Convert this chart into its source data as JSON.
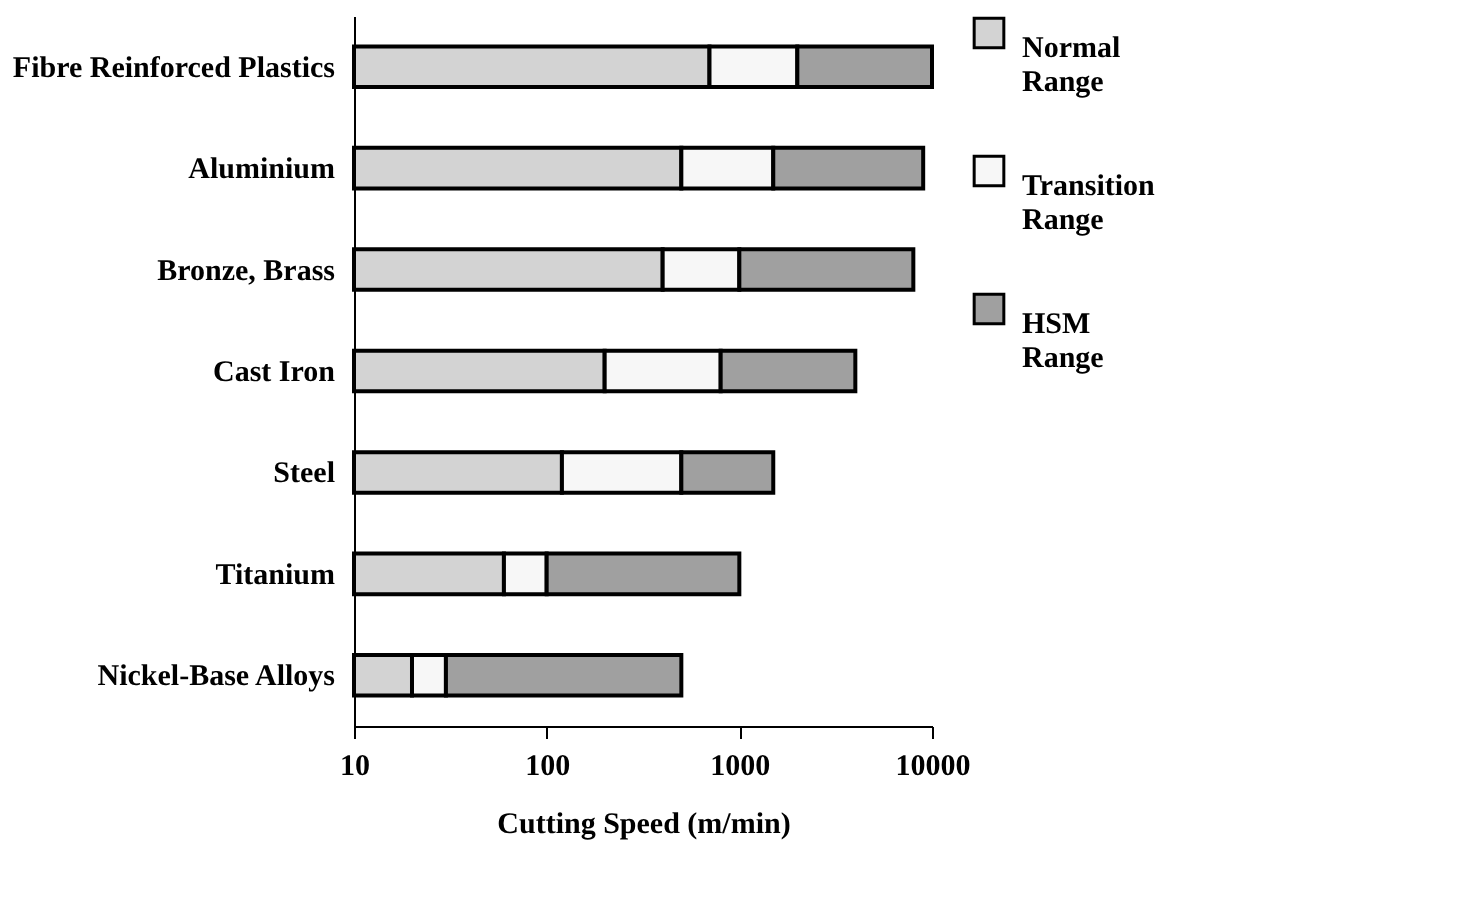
{
  "chart_data": {
    "type": "bar",
    "orientation": "horizontal",
    "log": "x",
    "xlabel": "Cutting Speed (m/min)",
    "categories": [
      "Fibre Reinforced Plastics",
      "Aluminium",
      "Bronze, Brass",
      "Cast Iron",
      "Steel",
      "Titanium",
      "Nickel-Base Alloys"
    ],
    "series": [
      {
        "name": "Normal Range",
        "color": "#d3d3d3",
        "base": [
          10,
          10,
          10,
          10,
          10,
          10,
          10
        ],
        "values": [
          690,
          490,
          390,
          190,
          110,
          50,
          10
        ]
      },
      {
        "name": "Transition Range",
        "color": "#f7f7f7",
        "base": [
          700,
          500,
          400,
          200,
          120,
          60,
          20
        ],
        "values": [
          1300,
          1000,
          600,
          600,
          380,
          40,
          10
        ]
      },
      {
        "name": "HSM Range",
        "color": "#a0a0a0",
        "base": [
          2000,
          1500,
          1000,
          800,
          500,
          100,
          30
        ],
        "values": [
          8000,
          7500,
          7000,
          3200,
          1000,
          900,
          470
        ]
      }
    ],
    "xlim": [
      10,
      10000
    ],
    "xticks": [
      10,
      100,
      1000,
      10000
    ],
    "legend": "right"
  }
}
